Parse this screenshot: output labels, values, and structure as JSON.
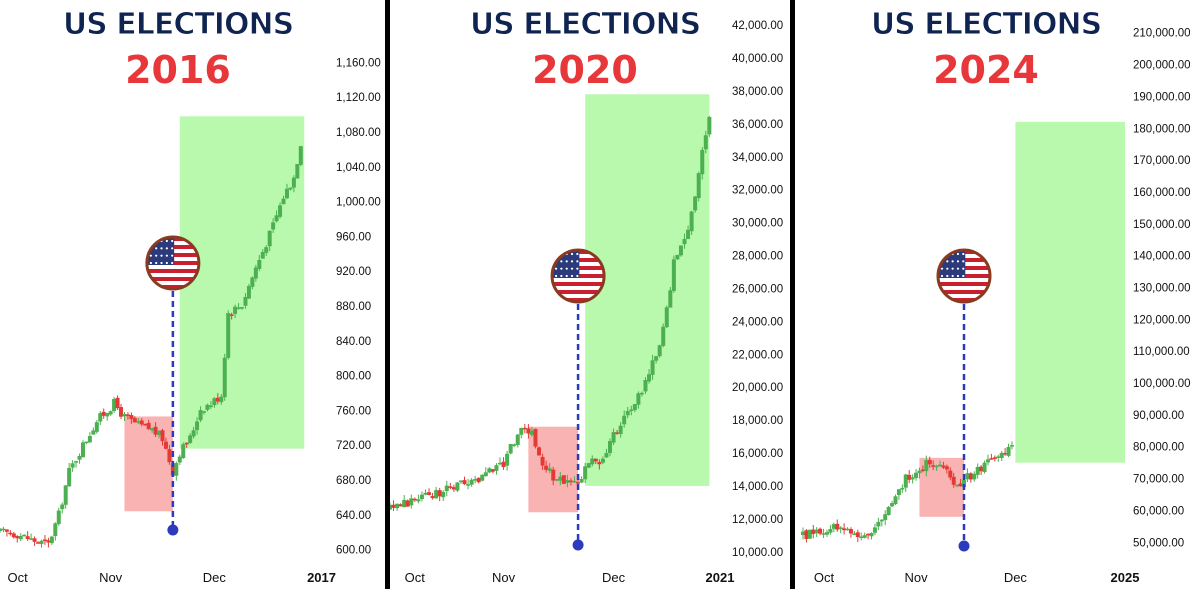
{
  "colors": {
    "up": "#4caf50",
    "down": "#e53935",
    "green_zone": "#b9f9ad",
    "red_zone": "#f9b3b3",
    "title_navy": "#0f2450",
    "title_red": "#e8373a",
    "marker": "#2a3bbd",
    "divider": "#000000"
  },
  "icons": {
    "flag": "us-flag-icon",
    "marker": "election-marker-dot"
  },
  "chart_data": [
    {
      "type": "candlestick",
      "title": "US ELECTIONS",
      "subtitle": "2016",
      "x_labels": [
        "Oct",
        "Nov",
        "Dec",
        "2017"
      ],
      "y_ticks": [
        600,
        640,
        680,
        720,
        760,
        800,
        840,
        880,
        920,
        960,
        1000,
        1040,
        1080,
        1120,
        1160
      ],
      "y_tick_labels": [
        "600.00",
        "640.00",
        "680.00",
        "720.00",
        "760.00",
        "800.00",
        "840.00",
        "880.00",
        "920.00",
        "960.00",
        "1,000.00",
        "1,040.00",
        "1,080.00",
        "1,120.00",
        "1,160.00"
      ],
      "ylim": [
        588,
        1180
      ],
      "xlim": [
        0,
        94
      ],
      "x_ticks": [
        1,
        32,
        62,
        93
      ],
      "election_day": 50,
      "red_zone": {
        "x": [
          36,
          50
        ],
        "y": [
          644,
          753
        ]
      },
      "green_zone": {
        "x": [
          52,
          88
        ],
        "y": [
          716,
          1098
        ]
      },
      "close_path": [
        [
          0,
          620
        ],
        [
          5,
          618
        ],
        [
          10,
          610
        ],
        [
          14,
          606
        ],
        [
          17,
          640
        ],
        [
          20,
          690
        ],
        [
          24,
          720
        ],
        [
          28,
          748
        ],
        [
          33,
          768
        ],
        [
          36,
          752
        ],
        [
          40,
          743
        ],
        [
          44,
          738
        ],
        [
          47,
          728
        ],
        [
          50,
          690
        ],
        [
          52,
          712
        ],
        [
          55,
          728
        ],
        [
          58,
          762
        ],
        [
          61,
          768
        ],
        [
          64,
          778
        ],
        [
          66,
          872
        ],
        [
          70,
          882
        ],
        [
          74,
          924
        ],
        [
          78,
          962
        ],
        [
          82,
          1006
        ],
        [
          85,
          1028
        ],
        [
          87,
          1068
        ]
      ]
    },
    {
      "type": "candlestick",
      "title": "US ELECTIONS",
      "subtitle": "2020",
      "x_labels": [
        "Oct",
        "Nov",
        "Dec",
        "2021"
      ],
      "y_ticks": [
        10000,
        12000,
        14000,
        16000,
        18000,
        20000,
        22000,
        24000,
        26000,
        28000,
        30000,
        32000,
        34000,
        36000,
        38000,
        40000,
        42000
      ],
      "y_tick_labels": [
        "10,000.00",
        "12,000.00",
        "14,000.00",
        "16,000.00",
        "18,000.00",
        "20,000.00",
        "22,000.00",
        "24,000.00",
        "26,000.00",
        "28,000.00",
        "30,000.00",
        "32,000.00",
        "34,000.00",
        "36,000.00",
        "38,000.00",
        "40,000.00",
        "42,000.00"
      ],
      "ylim": [
        9500,
        42800
      ],
      "xlim": [
        0,
        93
      ],
      "x_ticks": [
        3,
        32,
        63,
        93
      ],
      "election_day": 53,
      "red_zone": {
        "x": [
          39,
          53
        ],
        "y": [
          12400,
          17600
        ]
      },
      "green_zone": {
        "x": [
          55,
          90
        ],
        "y": [
          14000,
          37800
        ]
      },
      "close_path": [
        [
          0,
          12600
        ],
        [
          6,
          13100
        ],
        [
          12,
          13500
        ],
        [
          18,
          13900
        ],
        [
          24,
          14300
        ],
        [
          28,
          15000
        ],
        [
          32,
          15400
        ],
        [
          36,
          17200
        ],
        [
          40,
          17300
        ],
        [
          43,
          15300
        ],
        [
          46,
          14600
        ],
        [
          50,
          14200
        ],
        [
          53,
          14300
        ],
        [
          56,
          15400
        ],
        [
          60,
          15600
        ],
        [
          63,
          17000
        ],
        [
          67,
          18600
        ],
        [
          70,
          19400
        ],
        [
          74,
          21500
        ],
        [
          77,
          23500
        ],
        [
          80,
          27500
        ],
        [
          83,
          28800
        ],
        [
          86,
          31800
        ],
        [
          88,
          34200
        ],
        [
          90,
          36400
        ]
      ]
    },
    {
      "type": "candlestick",
      "title": "US ELECTIONS",
      "subtitle": "2024",
      "x_labels": [
        "Oct",
        "Nov",
        "Dec",
        "2025"
      ],
      "y_ticks": [
        50000,
        60000,
        70000,
        80000,
        90000,
        100000,
        110000,
        120000,
        130000,
        140000,
        150000,
        160000,
        170000,
        180000,
        190000,
        200000,
        210000
      ],
      "y_tick_labels": [
        "50,000.00",
        "60,000.00",
        "70,000.00",
        "80,000.00",
        "90,000.00",
        "100,000.00",
        "110,000.00",
        "120,000.00",
        "130,000.00",
        "140,000.00",
        "150,000.00",
        "160,000.00",
        "170,000.00",
        "180,000.00",
        "190,000.00",
        "200,000.00",
        "210,000.00"
      ],
      "ylim": [
        46000,
        214000
      ],
      "xlim": [
        0,
        94
      ],
      "x_ticks": [
        2,
        33,
        62,
        94
      ],
      "election_day": 47,
      "red_zone": {
        "x": [
          34,
          47
        ],
        "y": [
          58000,
          76500
        ]
      },
      "green_zone": {
        "x": [
          62,
          94
        ],
        "y": [
          75000,
          182000
        ]
      },
      "close_path": [
        [
          0,
          52000
        ],
        [
          5,
          54000
        ],
        [
          10,
          54500
        ],
        [
          14,
          53000
        ],
        [
          18,
          52000
        ],
        [
          22,
          56000
        ],
        [
          26,
          61000
        ],
        [
          30,
          70000
        ],
        [
          34,
          73000
        ],
        [
          37,
          75500
        ],
        [
          40,
          75000
        ],
        [
          42,
          72000
        ],
        [
          45,
          68000
        ],
        [
          47,
          69500
        ],
        [
          50,
          71500
        ],
        [
          53,
          74500
        ],
        [
          56,
          76000
        ],
        [
          59,
          78500
        ],
        [
          61,
          80500
        ]
      ]
    }
  ]
}
